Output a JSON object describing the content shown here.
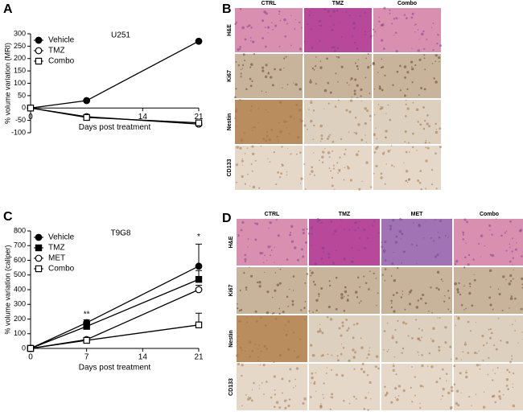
{
  "chart_data": [
    {
      "type": "line",
      "panel": "A",
      "title": "U251",
      "ylabel": "% volume variation (MRI)",
      "xlabel": "Days post treatment",
      "x": [
        0,
        7,
        21
      ],
      "xlim": [
        0,
        21
      ],
      "xticks": [
        0,
        14,
        21
      ],
      "ylim": [
        -100,
        300
      ],
      "yticks": [
        -100,
        -50,
        0,
        50,
        100,
        150,
        200,
        250,
        300
      ],
      "legend": "upper left",
      "series": [
        {
          "name": "Vehicle",
          "color": "#000000",
          "marker": "filled-circle",
          "values": [
            0,
            30,
            270
          ]
        },
        {
          "name": "TMZ",
          "color": "#000000",
          "marker": "open-circle",
          "values": [
            0,
            -35,
            -65
          ]
        },
        {
          "name": "Combo",
          "color": "#000000",
          "marker": "open-square",
          "values": [
            0,
            -38,
            -60
          ]
        }
      ]
    },
    {
      "type": "line",
      "panel": "C",
      "title": "T9G8",
      "ylabel": "% volume variation (caliper)",
      "xlabel": "Days post treatment",
      "x": [
        0,
        7,
        21
      ],
      "xlim": [
        0,
        21
      ],
      "xticks": [
        0,
        7,
        14,
        21
      ],
      "ylim": [
        0,
        800
      ],
      "yticks": [
        0,
        100,
        200,
        300,
        400,
        500,
        600,
        700,
        800
      ],
      "legend": "upper left",
      "annotations": [
        {
          "text": "**",
          "x": 7,
          "y": 230
        },
        {
          "text": "*",
          "x": 21,
          "y": 760
        }
      ],
      "series": [
        {
          "name": "Vehicle",
          "color": "#000000",
          "marker": "filled-circle",
          "values": [
            0,
            175,
            560
          ],
          "errors": [
            null,
            20,
            150
          ]
        },
        {
          "name": "TMZ",
          "color": "#000000",
          "marker": "filled-square",
          "values": [
            0,
            150,
            470
          ],
          "errors": [
            null,
            20,
            60
          ]
        },
        {
          "name": "MET",
          "color": "#000000",
          "marker": "open-circle",
          "values": [
            0,
            60,
            400
          ],
          "errors": [
            null,
            10,
            30
          ]
        },
        {
          "name": "Combo",
          "color": "#000000",
          "marker": "open-square",
          "values": [
            0,
            55,
            160
          ],
          "errors": [
            null,
            10,
            80
          ]
        }
      ]
    }
  ],
  "micrographs": [
    {
      "panel": "B",
      "columns": [
        "CTRL",
        "TMZ",
        "Combo"
      ],
      "rows": [
        "H&E",
        "Ki67",
        "Nestin",
        "CD133"
      ]
    },
    {
      "panel": "D",
      "columns": [
        "CTRL",
        "TMZ",
        "MET",
        "Combo"
      ],
      "rows": [
        "H&E",
        "Ki67",
        "Nestin",
        "CD133"
      ]
    }
  ]
}
